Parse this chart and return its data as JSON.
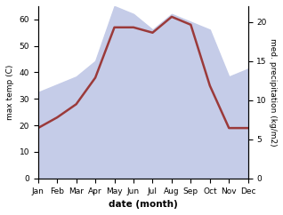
{
  "months": [
    "Jan",
    "Feb",
    "Mar",
    "Apr",
    "May",
    "Jun",
    "Jul",
    "Aug",
    "Sep",
    "Oct",
    "Nov",
    "Dec"
  ],
  "temperature": [
    19,
    23,
    28,
    38,
    57,
    57,
    55,
    61,
    58,
    35,
    19,
    19
  ],
  "precipitation": [
    11,
    12,
    13,
    15,
    22,
    21,
    19,
    21,
    20,
    19,
    13,
    14
  ],
  "temp_color": "#9b3a3a",
  "precip_fill_color": "#c5cce8",
  "ylabel_left": "max temp (C)",
  "ylabel_right": "med. precipitation (kg/m2)",
  "xlabel": "date (month)",
  "ylim_left": [
    0,
    65
  ],
  "ylim_right": [
    0,
    22
  ],
  "yticks_left": [
    0,
    10,
    20,
    30,
    40,
    50,
    60
  ],
  "yticks_right": [
    0,
    5,
    10,
    15,
    20
  ],
  "scale_factor": 2.954545,
  "bg_color": "#ffffff"
}
